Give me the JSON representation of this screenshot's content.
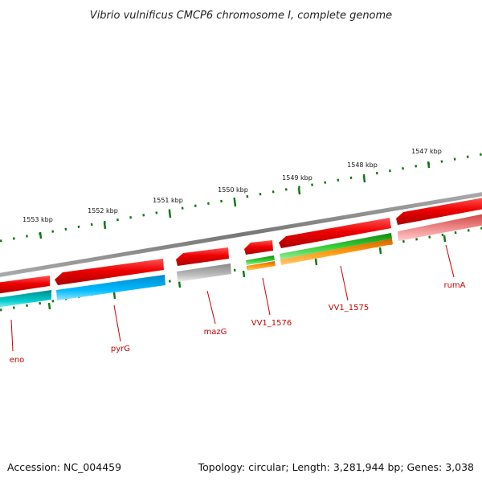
{
  "title": "Vibrio vulnificus CMCP6 chromosome I, complete genome",
  "footer": {
    "accession": "Accession: NC_004459",
    "summary": "Topology: circular; Length: 3,281,944 bp; Genes: 3,038"
  },
  "scale": {
    "unit": "kbp",
    "major_ticks": [
      {
        "position_kbp": 1547,
        "label": "1547 kbp"
      },
      {
        "position_kbp": 1548,
        "label": "1548 kbp"
      },
      {
        "position_kbp": 1549,
        "label": "1549 kbp"
      },
      {
        "position_kbp": 1550,
        "label": "1550 kbp"
      },
      {
        "position_kbp": 1551,
        "label": "1551 kbp"
      },
      {
        "position_kbp": 1552,
        "label": "1552 kbp"
      },
      {
        "position_kbp": 1553,
        "label": "1553 kbp"
      }
    ]
  },
  "genes": [
    {
      "name": "eno",
      "label": "eno",
      "strand": "-",
      "colors": [
        "#ee0000",
        "#00bbbb"
      ]
    },
    {
      "name": "pyrG",
      "label": "pyrG",
      "strand": "-",
      "colors": [
        "#ee0000",
        "#00aaee"
      ]
    },
    {
      "name": "mazG",
      "label": "mazG",
      "strand": "-",
      "colors": [
        "#ee0000",
        "#aaaaaa"
      ]
    },
    {
      "name": "VV1_1576",
      "label": "VV1_1576",
      "strand": "-",
      "colors": [
        "#ee0000",
        "#33bb33",
        "#ff8800"
      ]
    },
    {
      "name": "VV1_1575",
      "label": "VV1_1575",
      "strand": "-",
      "colors": [
        "#ee0000",
        "#33bb33",
        "#ff8800"
      ]
    },
    {
      "name": "rumA",
      "label": "rumA",
      "strand": "-",
      "colors": [
        "#ee0000",
        "#ee8888"
      ]
    }
  ],
  "colors": {
    "backbone": "#888888",
    "tick": "#117711",
    "gene_label": "#cc0000",
    "label_line": "#cc0000"
  }
}
